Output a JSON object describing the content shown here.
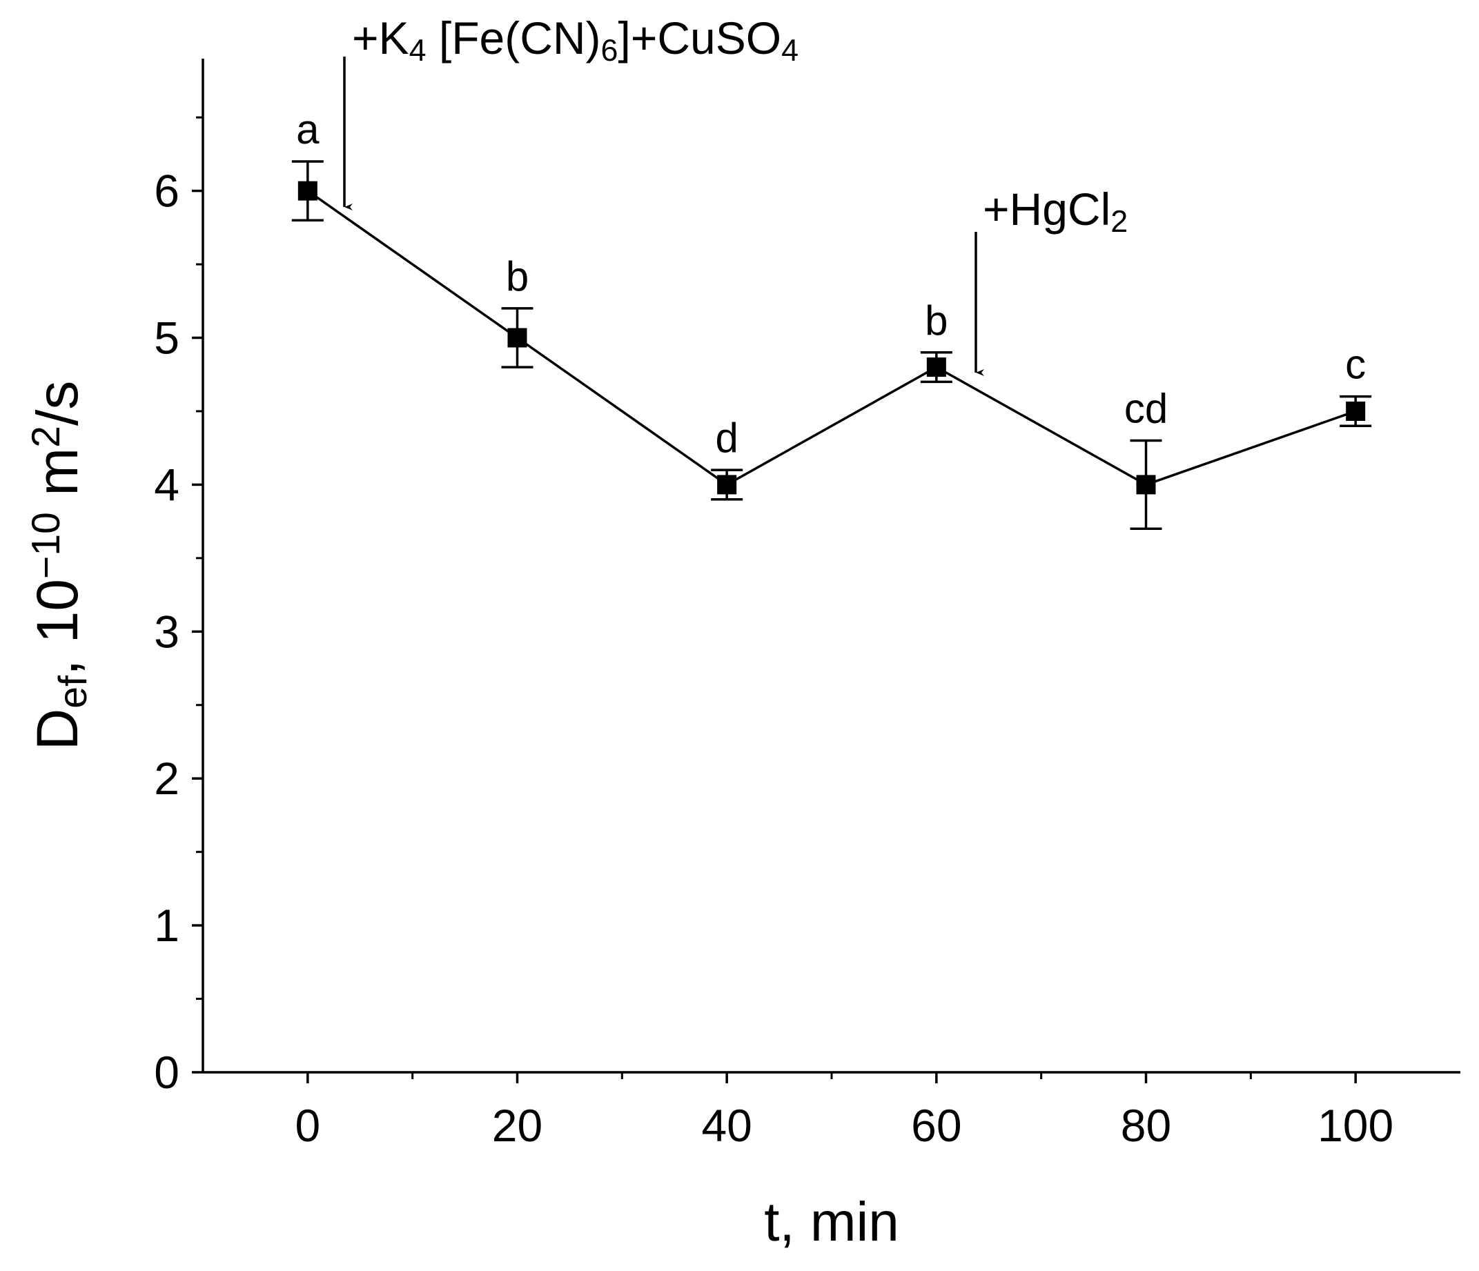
{
  "chart_data": {
    "type": "line",
    "x": [
      0,
      20,
      40,
      60,
      80,
      100
    ],
    "values": [
      6,
      5,
      4,
      4.8,
      4,
      4.5
    ],
    "errors": [
      0.2,
      0.2,
      0.1,
      0.1,
      0.3,
      0.1
    ],
    "point_labels": [
      "a",
      "b",
      "d",
      "b",
      "cd",
      "c"
    ],
    "color": "#000000",
    "xlim": [
      -10,
      110
    ],
    "ylim": [
      0,
      6.9
    ],
    "xticks": [
      0,
      20,
      40,
      60,
      80,
      100
    ],
    "yticks": [
      0,
      1,
      2,
      3,
      4,
      5,
      6
    ],
    "xminorticks": [
      10,
      30,
      50,
      70,
      90
    ],
    "yminorticks": [
      0.5,
      1.5,
      2.5,
      3.5,
      4.5,
      5.5,
      6.5
    ],
    "x_label": "t, min",
    "y_label": [
      {
        "text": "D"
      },
      {
        "text": "ef",
        "sub": true
      },
      {
        "text": ", 10"
      },
      {
        "text": "−10",
        "sup": true
      },
      {
        "text": " m"
      },
      {
        "text": "2",
        "sup": true
      },
      {
        "text": "/s"
      }
    ],
    "annotations": [
      {
        "segments": [
          {
            "text": "+K"
          },
          {
            "text": "4",
            "sub": true
          },
          {
            "text": " [Fe(CN)"
          },
          {
            "text": "6",
            "sub": true
          },
          {
            "text": "]+CuSO"
          },
          {
            "text": "4",
            "sub": true
          }
        ]
      },
      {
        "segments": [
          {
            "text": "+HgCl"
          },
          {
            "text": "2",
            "sub": true
          }
        ]
      }
    ]
  }
}
